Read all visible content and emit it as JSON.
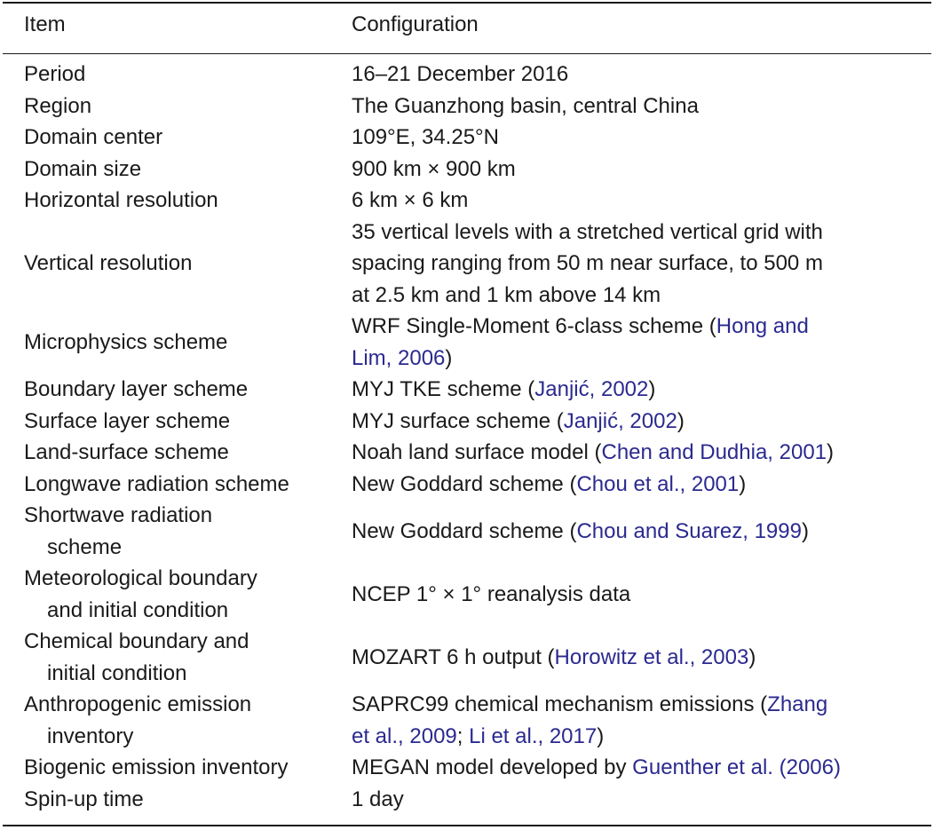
{
  "header": {
    "item": "Item",
    "configuration": "Configuration"
  },
  "rows": [
    {
      "item": [
        "Period"
      ],
      "config": [
        [
          {
            "t": "16–21 December 2016"
          }
        ]
      ]
    },
    {
      "item": [
        "Region"
      ],
      "config": [
        [
          {
            "t": "The Guanzhong basin, central China"
          }
        ]
      ]
    },
    {
      "item": [
        "Domain center"
      ],
      "config": [
        [
          {
            "t": "109°E, 34.25°N"
          }
        ]
      ]
    },
    {
      "item": [
        "Domain size"
      ],
      "config": [
        [
          {
            "t": "900 km × 900 km"
          }
        ]
      ]
    },
    {
      "item": [
        "Horizontal resolution"
      ],
      "config": [
        [
          {
            "t": "6 km × 6 km"
          }
        ]
      ]
    },
    {
      "item": [
        "Vertical resolution"
      ],
      "config": [
        [
          {
            "t": "35 vertical levels with a stretched vertical grid with"
          }
        ],
        [
          {
            "t": "spacing ranging from 50 m near surface, to 500 m"
          }
        ],
        [
          {
            "t": "at 2.5 km and 1 km above 14 km"
          }
        ]
      ]
    },
    {
      "item": [
        "Microphysics scheme"
      ],
      "config": [
        [
          {
            "t": "WRF Single-Moment 6-class scheme ("
          },
          {
            "t": "Hong and",
            "ref": true
          }
        ],
        [
          {
            "t": "Lim, 2006",
            "ref": true
          },
          {
            "t": ")"
          }
        ]
      ]
    },
    {
      "item": [
        "Boundary layer scheme"
      ],
      "config": [
        [
          {
            "t": "MYJ TKE scheme ("
          },
          {
            "t": "Janjić, 2002",
            "ref": true
          },
          {
            "t": ")"
          }
        ]
      ]
    },
    {
      "item": [
        "Surface layer scheme"
      ],
      "config": [
        [
          {
            "t": "MYJ surface scheme ("
          },
          {
            "t": "Janjić, 2002",
            "ref": true
          },
          {
            "t": ")"
          }
        ]
      ]
    },
    {
      "item": [
        "Land-surface scheme"
      ],
      "config": [
        [
          {
            "t": "Noah land surface model ("
          },
          {
            "t": "Chen and Dudhia, 2001",
            "ref": true
          },
          {
            "t": ")"
          }
        ]
      ]
    },
    {
      "item": [
        "Longwave radiation scheme"
      ],
      "config": [
        [
          {
            "t": "New Goddard scheme ("
          },
          {
            "t": "Chou et al., 2001",
            "ref": true
          },
          {
            "t": ")"
          }
        ]
      ]
    },
    {
      "item": [
        "Shortwave radiation",
        "scheme"
      ],
      "config": [
        [
          {
            "t": "New Goddard scheme ("
          },
          {
            "t": "Chou and Suarez, 1999",
            "ref": true
          },
          {
            "t": ")"
          }
        ]
      ]
    },
    {
      "item": [
        "Meteorological boundary",
        "and initial condition"
      ],
      "config": [
        [
          {
            "t": "NCEP 1° × 1° reanalysis data"
          }
        ]
      ]
    },
    {
      "item": [
        "Chemical boundary and",
        "initial condition"
      ],
      "config": [
        [
          {
            "t": "MOZART 6 h output ("
          },
          {
            "t": "Horowitz et al., 2003",
            "ref": true
          },
          {
            "t": ")"
          }
        ]
      ]
    },
    {
      "item": [
        "Anthropogenic emission",
        "inventory"
      ],
      "config": [
        [
          {
            "t": "SAPRC99 chemical mechanism emissions ("
          },
          {
            "t": "Zhang",
            "ref": true
          }
        ],
        [
          {
            "t": "et al., 2009",
            "ref": true
          },
          {
            "t": "; "
          },
          {
            "t": "Li et al., 2017",
            "ref": true
          },
          {
            "t": ")"
          }
        ]
      ]
    },
    {
      "item": [
        "Biogenic emission inventory"
      ],
      "config": [
        [
          {
            "t": "MEGAN model developed by "
          },
          {
            "t": "Guenther et al. (2006)",
            "ref": true
          }
        ]
      ]
    },
    {
      "item": [
        "Spin-up time"
      ],
      "config": [
        [
          {
            "t": "1 day"
          }
        ]
      ]
    }
  ]
}
